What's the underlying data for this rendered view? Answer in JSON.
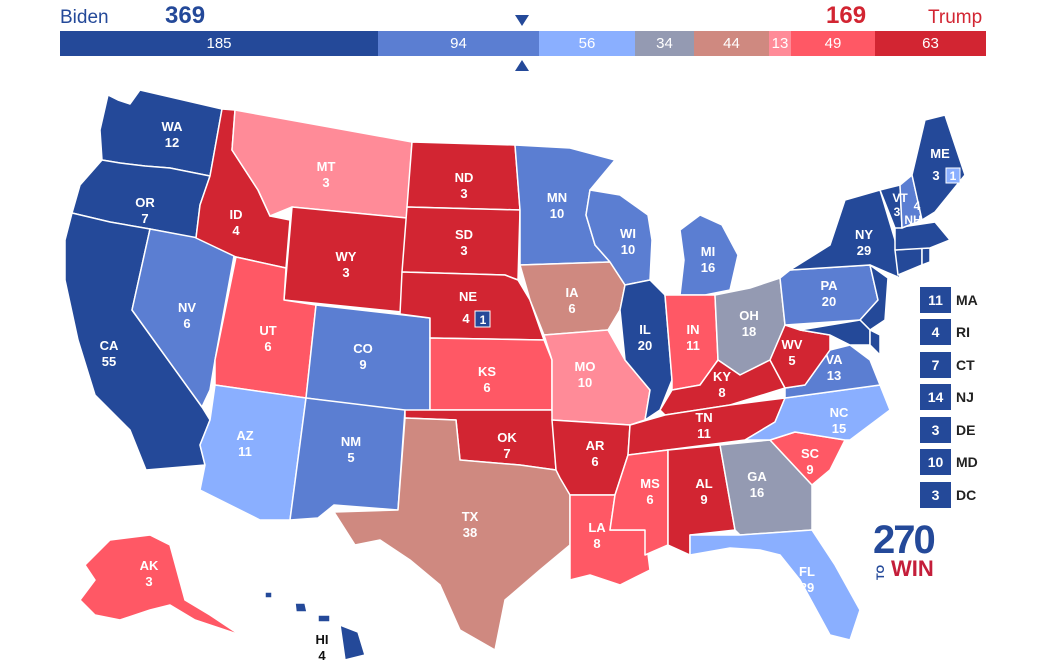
{
  "header": {
    "biden_label": "Biden",
    "biden_votes": "369",
    "trump_label": "Trump",
    "trump_votes": "169"
  },
  "bar_segments": [
    {
      "value": "185",
      "color": "#244999"
    },
    {
      "value": "94",
      "color": "#5b7ed2"
    },
    {
      "value": "56",
      "color": "#8aafff"
    },
    {
      "value": "34",
      "color": "#949ab2"
    },
    {
      "value": "44",
      "color": "#cf8980"
    },
    {
      "value": "13",
      "color": "#ff8b98"
    },
    {
      "value": "49",
      "color": "#ff5865"
    },
    {
      "value": "63",
      "color": "#d22532"
    }
  ],
  "colors": {
    "safe_dem": "#244999",
    "likely_dem": "#5b7ed2",
    "lean_dem": "#8aafff",
    "tossup": "#949ab2",
    "tilt_rep": "#cf8980",
    "lean_rep": "#ff8b98",
    "likely_rep": "#ff5865",
    "safe_rep": "#d22532"
  },
  "states": {
    "WA": {
      "abbr": "WA",
      "ev": "12"
    },
    "OR": {
      "abbr": "OR",
      "ev": "7"
    },
    "CA": {
      "abbr": "CA",
      "ev": "55"
    },
    "NV": {
      "abbr": "NV",
      "ev": "6"
    },
    "ID": {
      "abbr": "ID",
      "ev": "4"
    },
    "MT": {
      "abbr": "MT",
      "ev": "3"
    },
    "WY": {
      "abbr": "WY",
      "ev": "3"
    },
    "UT": {
      "abbr": "UT",
      "ev": "6"
    },
    "AZ": {
      "abbr": "AZ",
      "ev": "11"
    },
    "CO": {
      "abbr": "CO",
      "ev": "9"
    },
    "NM": {
      "abbr": "NM",
      "ev": "5"
    },
    "ND": {
      "abbr": "ND",
      "ev": "3"
    },
    "SD": {
      "abbr": "SD",
      "ev": "3"
    },
    "NE": {
      "abbr": "NE",
      "ev": "4",
      "district": "1"
    },
    "KS": {
      "abbr": "KS",
      "ev": "6"
    },
    "OK": {
      "abbr": "OK",
      "ev": "7"
    },
    "TX": {
      "abbr": "TX",
      "ev": "38"
    },
    "MN": {
      "abbr": "MN",
      "ev": "10"
    },
    "IA": {
      "abbr": "IA",
      "ev": "6"
    },
    "MO": {
      "abbr": "MO",
      "ev": "10"
    },
    "AR": {
      "abbr": "AR",
      "ev": "6"
    },
    "LA": {
      "abbr": "LA",
      "ev": "8"
    },
    "WI": {
      "abbr": "WI",
      "ev": "10"
    },
    "IL": {
      "abbr": "IL",
      "ev": "20"
    },
    "MI": {
      "abbr": "MI",
      "ev": "16"
    },
    "IN": {
      "abbr": "IN",
      "ev": "11"
    },
    "OH": {
      "abbr": "OH",
      "ev": "18"
    },
    "KY": {
      "abbr": "KY",
      "ev": "8"
    },
    "TN": {
      "abbr": "TN",
      "ev": "11"
    },
    "MS": {
      "abbr": "MS",
      "ev": "6"
    },
    "AL": {
      "abbr": "AL",
      "ev": "9"
    },
    "GA": {
      "abbr": "GA",
      "ev": "16"
    },
    "FL": {
      "abbr": "FL",
      "ev": "29"
    },
    "SC": {
      "abbr": "SC",
      "ev": "9"
    },
    "NC": {
      "abbr": "NC",
      "ev": "15"
    },
    "VA": {
      "abbr": "VA",
      "ev": "13"
    },
    "WV": {
      "abbr": "WV",
      "ev": "5"
    },
    "PA": {
      "abbr": "PA",
      "ev": "20"
    },
    "NY": {
      "abbr": "NY",
      "ev": "29"
    },
    "VT": {
      "abbr": "VT",
      "ev": "3"
    },
    "NH": {
      "abbr": "NH",
      "ev": "4"
    },
    "ME": {
      "abbr": "ME",
      "ev": "3",
      "district": "1"
    },
    "AK": {
      "abbr": "AK",
      "ev": "3"
    },
    "HI": {
      "abbr": "HI",
      "ev": "4"
    }
  },
  "northeast_list": [
    {
      "ev": "11",
      "abbr": "MA"
    },
    {
      "ev": "4",
      "abbr": "RI"
    },
    {
      "ev": "7",
      "abbr": "CT"
    },
    {
      "ev": "14",
      "abbr": "NJ"
    },
    {
      "ev": "3",
      "abbr": "DE"
    },
    {
      "ev": "10",
      "abbr": "MD"
    },
    {
      "ev": "3",
      "abbr": "DC"
    }
  ],
  "logo": {
    "number": "270",
    "to": "TO",
    "win": "WIN"
  }
}
